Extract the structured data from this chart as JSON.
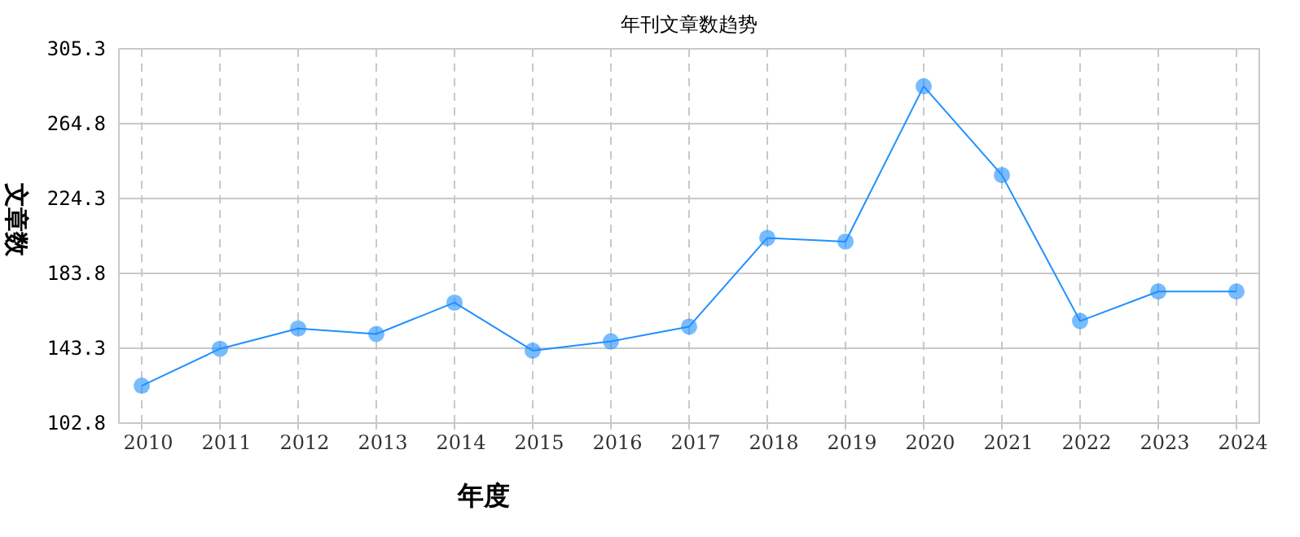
{
  "chart_data": {
    "type": "line",
    "title": "年刊文章数趋势",
    "xlabel": "年度",
    "ylabel": "文章数",
    "categories": [
      "2010",
      "2011",
      "2012",
      "2013",
      "2014",
      "2015",
      "2016",
      "2017",
      "2018",
      "2019",
      "2020",
      "2021",
      "2022",
      "2023",
      "2024"
    ],
    "series": [
      {
        "color": "#1e90ff",
        "values": [
          123,
          143,
          154,
          151,
          168,
          142,
          147,
          155,
          203,
          201,
          285,
          237,
          158,
          174,
          174
        ]
      }
    ],
    "ylim": [
      102.8,
      305.3
    ],
    "yticks": [
      102.8,
      143.3,
      183.8,
      224.3,
      264.8,
      305.3
    ],
    "grid": true,
    "marker": "circle",
    "line_style": "solid"
  }
}
